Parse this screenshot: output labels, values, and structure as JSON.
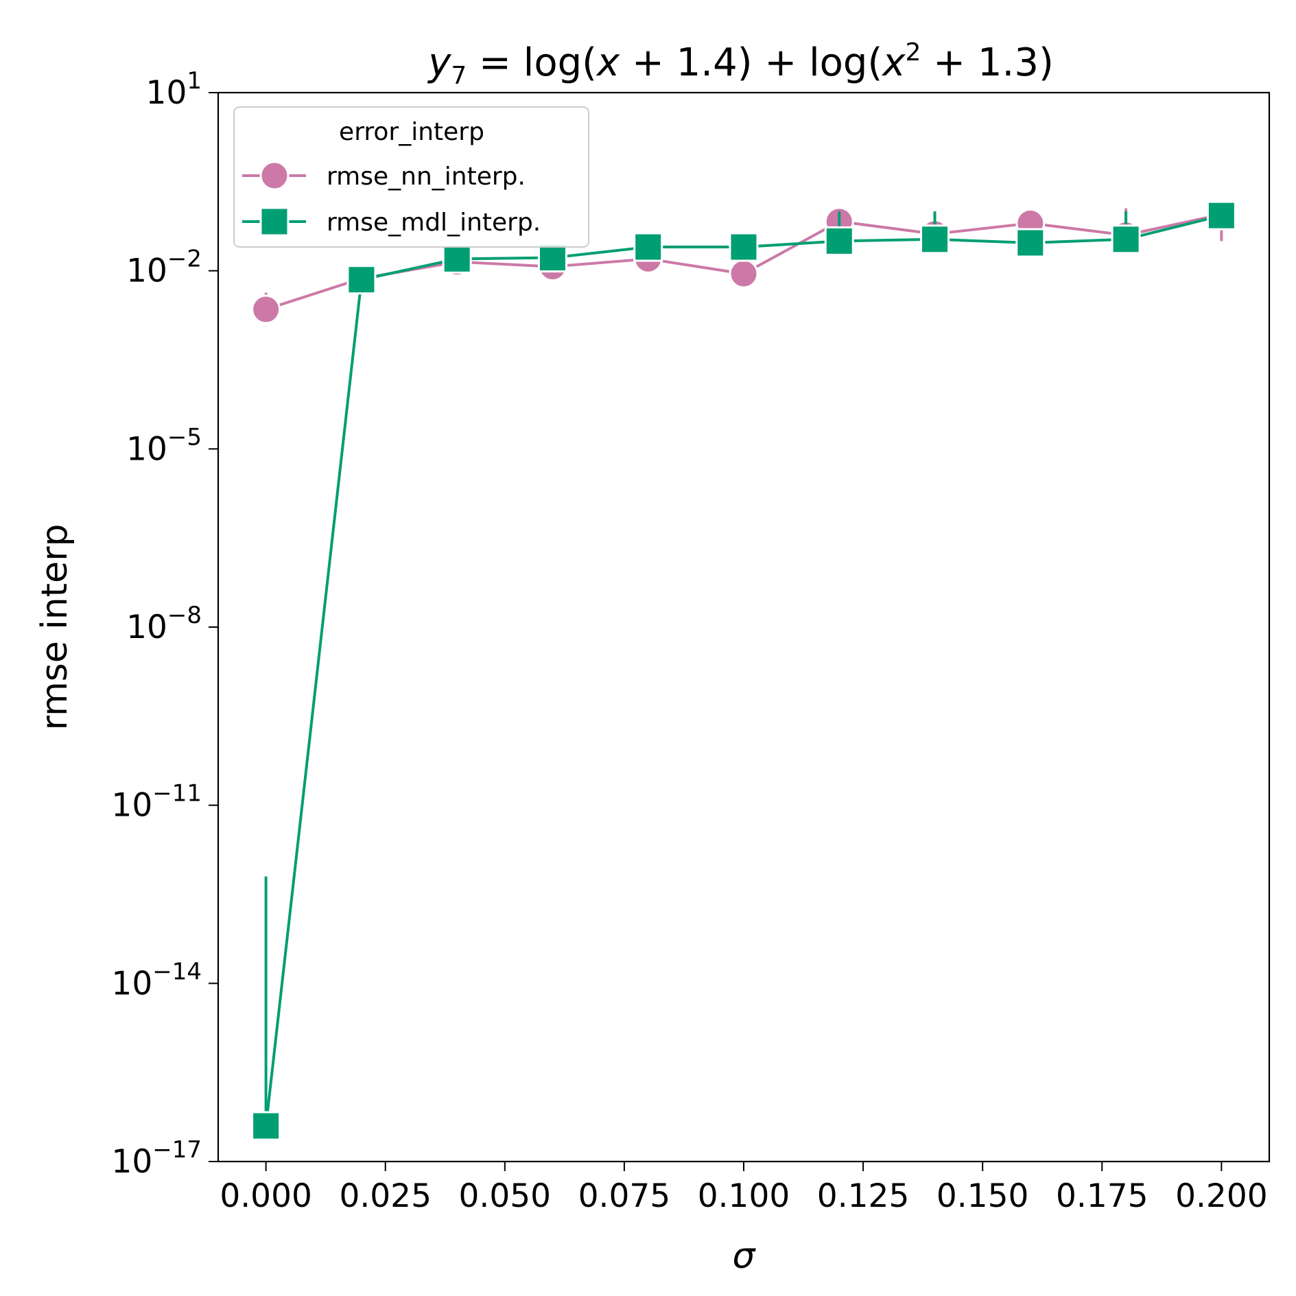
{
  "chart_data": {
    "type": "line",
    "title": {
      "lhs_var": "y",
      "lhs_sub": "7",
      "eq": " = log(",
      "x1": "x",
      "p1": " + 1.4) + log(",
      "x2": "x",
      "sup": "2",
      "p2": " + 1.3)"
    },
    "title_text": "y_7 = log(x + 1.4) + log(x^2 + 1.3)",
    "xlabel": "σ",
    "ylabel": "rmse interp",
    "yscale": "log",
    "xlim": [
      -0.01,
      0.21
    ],
    "ylim_exp": [
      -17,
      1
    ],
    "x_ticks": [
      {
        "value": 0.0,
        "label": "0.000"
      },
      {
        "value": 0.025,
        "label": "0.025"
      },
      {
        "value": 0.05,
        "label": "0.050"
      },
      {
        "value": 0.075,
        "label": "0.075"
      },
      {
        "value": 0.1,
        "label": "0.100"
      },
      {
        "value": 0.125,
        "label": "0.125"
      },
      {
        "value": 0.15,
        "label": "0.150"
      },
      {
        "value": 0.175,
        "label": "0.175"
      },
      {
        "value": 0.2,
        "label": "0.200"
      }
    ],
    "y_ticks": [
      {
        "exp": 1,
        "base": "10",
        "sup": "1"
      },
      {
        "exp": -2,
        "base": "10",
        "sup": "−2"
      },
      {
        "exp": -5,
        "base": "10",
        "sup": "−5"
      },
      {
        "exp": -8,
        "base": "10",
        "sup": "−8"
      },
      {
        "exp": -11,
        "base": "10",
        "sup": "−11"
      },
      {
        "exp": -14,
        "base": "10",
        "sup": "−14"
      },
      {
        "exp": -17,
        "base": "10",
        "sup": "−17"
      }
    ],
    "legend": {
      "title": "error_interp",
      "placement": "upper-left"
    },
    "x": [
      0.0,
      0.02,
      0.04,
      0.06,
      0.08,
      0.1,
      0.12,
      0.14,
      0.16,
      0.18,
      0.2
    ],
    "series": [
      {
        "name": "rmse_nn_interp.",
        "color": "#cc79a7",
        "marker": "circle",
        "log10_values": [
          -2.65,
          -2.13,
          -1.85,
          -1.93,
          -1.8,
          -2.05,
          -1.17,
          -1.38,
          -1.2,
          -1.4,
          -1.05
        ],
        "log10_err_low": [
          -2.75,
          -2.2,
          -1.95,
          -2.0,
          -1.95,
          -2.1,
          -1.25,
          -1.45,
          -1.3,
          -1.55,
          -1.5
        ],
        "log10_err_high": [
          -2.37,
          -2.05,
          -1.78,
          -1.85,
          -1.7,
          -2.0,
          -1.05,
          -1.3,
          -1.12,
          -0.95,
          -0.85
        ]
      },
      {
        "name": "rmse_mdl_interp.",
        "color": "#009e73",
        "marker": "square",
        "log10_values": [
          -16.4,
          -2.15,
          -1.8,
          -1.78,
          -1.6,
          -1.6,
          -1.5,
          -1.47,
          -1.53,
          -1.47,
          -1.07
        ],
        "log10_err_low": [
          -16.5,
          -2.25,
          -1.9,
          -1.88,
          -1.7,
          -1.68,
          -1.62,
          -1.58,
          -1.62,
          -1.6,
          -1.2
        ],
        "log10_err_high": [
          -12.2,
          -2.05,
          -1.7,
          -1.68,
          -1.5,
          -1.52,
          -1.0,
          -1.0,
          -1.45,
          -1.0,
          -0.95
        ]
      }
    ],
    "grid": false
  }
}
